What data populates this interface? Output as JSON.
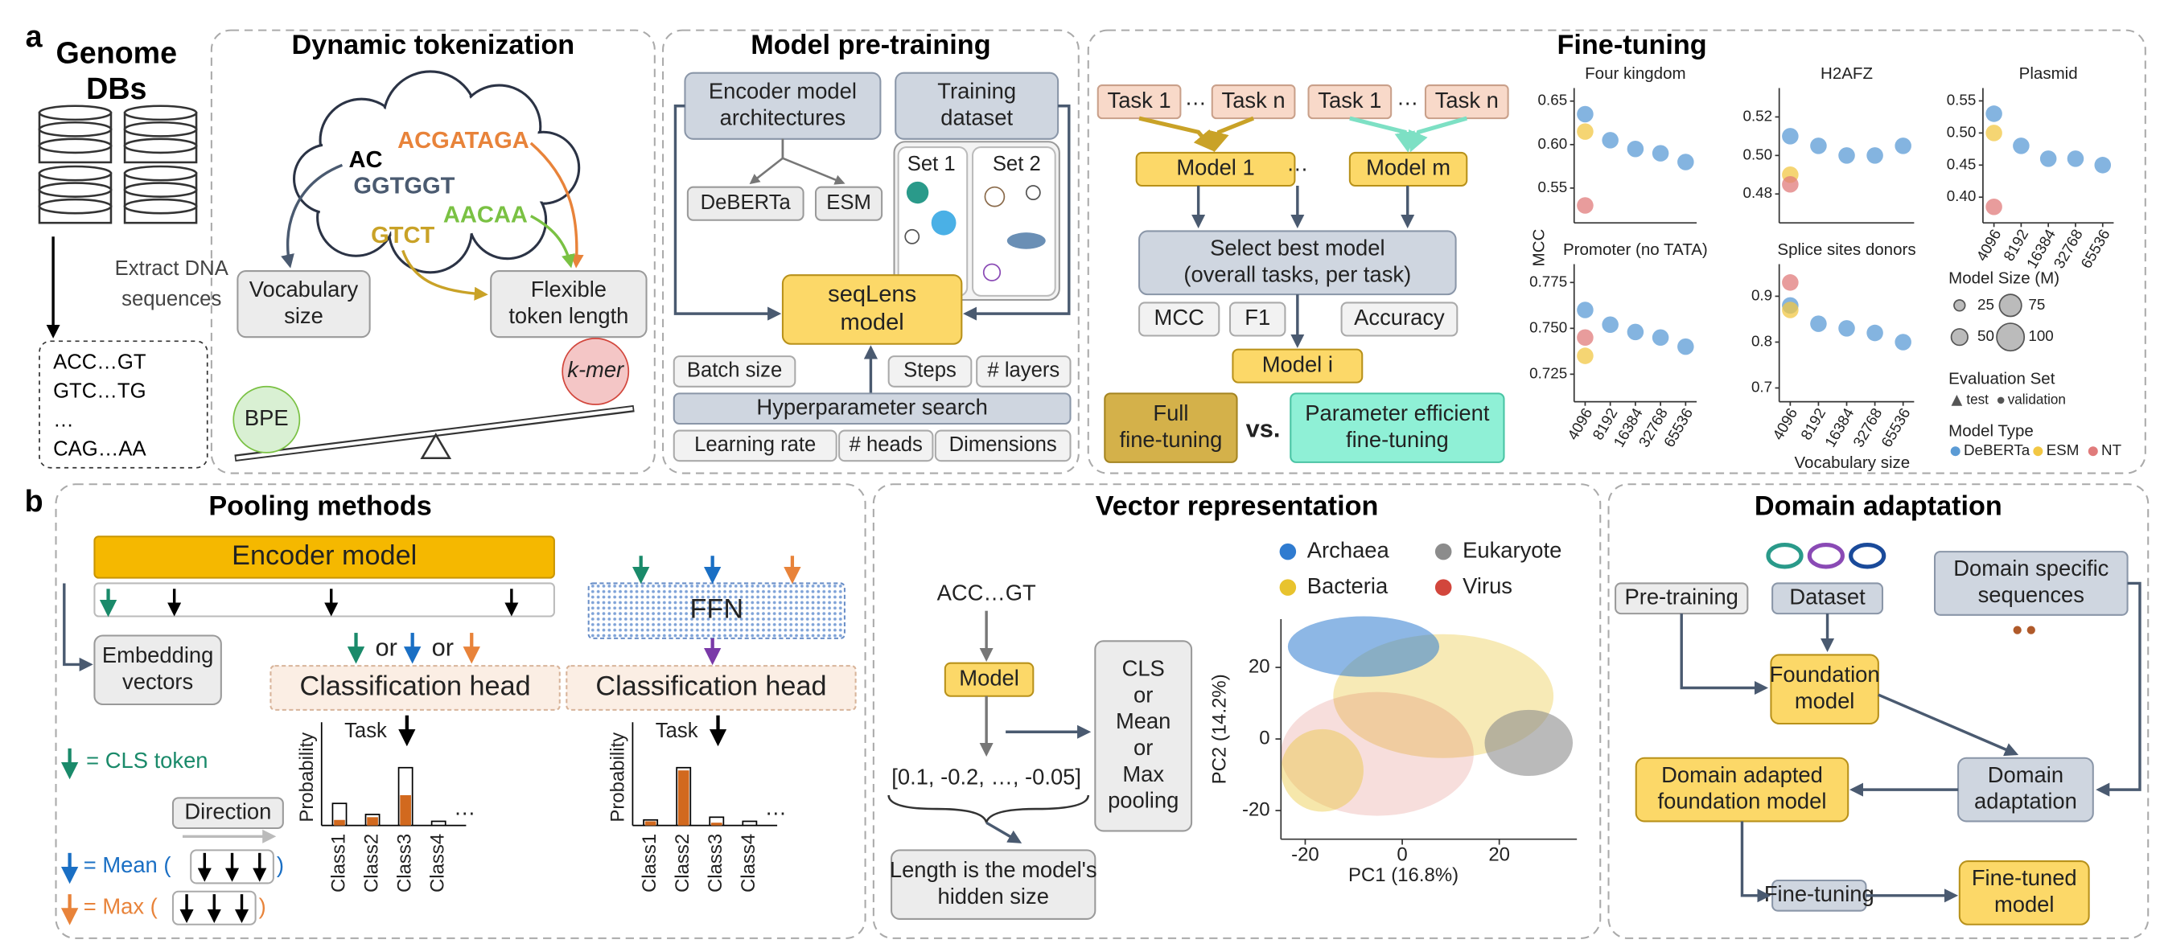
{
  "panel_labels": [
    "a",
    "b"
  ],
  "genome": {
    "title": [
      "Genome",
      "DBs"
    ],
    "extract": [
      "Extract DNA",
      "sequences"
    ],
    "sequences": [
      "ACC…GT",
      "GTC…TG",
      "…",
      "CAG…AA"
    ]
  },
  "tokenization": {
    "title": "Dynamic tokenization",
    "tokens": [
      "AC",
      "ACGATAGA",
      "GGTGGT",
      "AACAA",
      "GTCT"
    ],
    "vocabulary": [
      "Vocabulary",
      "size"
    ],
    "flexible": [
      "Flexible",
      "token length"
    ],
    "bpe": "BPE",
    "kmer": "k-mer"
  },
  "pretraining": {
    "title": "Model pre-training",
    "encoder": [
      "Encoder model",
      "architectures"
    ],
    "dataset": [
      "Training",
      "dataset"
    ],
    "architectures": [
      "DeBERTa",
      "ESM"
    ],
    "sets": [
      "Set 1",
      "Set 2"
    ],
    "model": [
      "seqLens",
      "model"
    ],
    "search": "Hyperparameter search",
    "hyperparameters": [
      "Batch size",
      "Steps",
      "# layers",
      "Learning rate",
      "# heads",
      "Dimensions"
    ]
  },
  "finetuning": {
    "title": "Fine-tuning",
    "tasks": [
      "Task 1",
      "…",
      "Task n",
      "Task 1",
      "…",
      "Task n"
    ],
    "models": [
      "Model 1",
      "…",
      "Model m"
    ],
    "select": [
      "Select best model",
      "(overall tasks, per task)"
    ],
    "metrics": [
      "MCC",
      "F1",
      "Accuracy"
    ],
    "best": "Model i",
    "full": [
      "Full",
      "fine-tuning"
    ],
    "versus": "vs.",
    "efficient": [
      "Parameter efficient",
      "fine-tuning"
    ]
  },
  "chart_data": {
    "type": "scatter",
    "y_label": "MCC",
    "x_label": "Vocabulary size",
    "categories": [
      "4096",
      "8192",
      "16384",
      "32768",
      "65536"
    ],
    "panels": [
      {
        "title": "Four kingdom",
        "ylim": [
          0.51,
          0.665
        ],
        "yticks": [
          0.65,
          {
            "value": 0.6,
            "label": "0.60"
          },
          0.55
        ],
        "series": [
          {
            "name": "DeBERTa",
            "color": "#5b9bd5",
            "values": [
              0.635,
              0.605,
              0.595,
              0.59,
              0.58
            ]
          },
          {
            "name": "ESM",
            "color": "#f2c744",
            "values": [
              0.615,
              null,
              null,
              null,
              null
            ]
          },
          {
            "name": "NT",
            "color": "#e07b7b",
            "values": [
              0.53,
              null,
              null,
              null,
              null
            ]
          }
        ]
      },
      {
        "title": "H2AFZ",
        "ylim": [
          0.465,
          0.535
        ],
        "yticks": [
          0.52,
          {
            "value": 0.5,
            "label": "0.50"
          },
          0.48
        ],
        "series": [
          {
            "name": "DeBERTa",
            "color": "#5b9bd5",
            "values": [
              0.51,
              0.505,
              0.5,
              0.5,
              0.505
            ]
          },
          {
            "name": "ESM",
            "color": "#f2c744",
            "values": [
              0.49,
              null,
              null,
              null,
              null
            ]
          },
          {
            "name": "NT",
            "color": "#e07b7b",
            "values": [
              0.485,
              null,
              null,
              null,
              null
            ]
          }
        ]
      },
      {
        "title": "Plasmid",
        "ylim": [
          0.36,
          0.57
        ],
        "yticks": [
          0.55,
          {
            "value": 0.5,
            "label": "0.50"
          },
          0.45,
          {
            "value": 0.4,
            "label": "0.40"
          }
        ],
        "series": [
          {
            "name": "DeBERTa",
            "color": "#5b9bd5",
            "values": [
              0.53,
              0.48,
              0.46,
              0.46,
              0.45
            ]
          },
          {
            "name": "ESM",
            "color": "#f2c744",
            "values": [
              0.5,
              null,
              null,
              null,
              null
            ]
          },
          {
            "name": "NT",
            "color": "#e07b7b",
            "values": [
              0.385,
              null,
              null,
              null,
              null
            ]
          }
        ]
      },
      {
        "title": "Promoter (no TATA)",
        "ylim": [
          0.71,
          0.785
        ],
        "yticks": [
          0.775,
          {
            "value": 0.75,
            "label": "0.750"
          },
          0.725
        ],
        "series": [
          {
            "name": "DeBERTa",
            "color": "#5b9bd5",
            "values": [
              0.76,
              0.752,
              0.748,
              0.745,
              0.74
            ]
          },
          {
            "name": "ESM",
            "color": "#f2c744",
            "values": [
              0.735,
              null,
              null,
              null,
              null
            ]
          },
          {
            "name": "NT",
            "color": "#e07b7b",
            "values": [
              0.745,
              null,
              null,
              null,
              null
            ]
          }
        ]
      },
      {
        "title": "Splice sites donors",
        "ylim": [
          0.67,
          0.97
        ],
        "yticks": [
          0.9,
          0.8,
          0.7
        ],
        "series": [
          {
            "name": "DeBERTa",
            "color": "#5b9bd5",
            "values": [
              0.88,
              0.84,
              0.83,
              0.82,
              0.8
            ]
          },
          {
            "name": "ESM",
            "color": "#f2c744",
            "values": [
              0.87,
              null,
              null,
              null,
              null
            ]
          },
          {
            "name": "NT",
            "color": "#e07b7b",
            "values": [
              0.93,
              null,
              null,
              null,
              null
            ]
          }
        ]
      }
    ],
    "legend": {
      "size_title": "Model Size (M)",
      "sizes": [
        25,
        75,
        50,
        100
      ],
      "eval_title": "Evaluation Set",
      "eval": [
        "test",
        "validation"
      ],
      "type_title": "Model Type"
    }
  },
  "pooling": {
    "title": "Pooling methods",
    "encoder": "Encoder model",
    "embedding": [
      "Embedding",
      "vectors"
    ],
    "or": [
      "or",
      "or"
    ],
    "heads": [
      "Classification head",
      "Classification head"
    ],
    "ffn": "FFN",
    "task": [
      "Task",
      "Task"
    ],
    "y_label": [
      "Probability",
      "Probability"
    ],
    "class_labels": [
      [
        "Class1",
        "Class2",
        "Class3",
        "Class4"
      ],
      [
        "Class1",
        "Class2",
        "Class3",
        "Class4"
      ]
    ],
    "ellipsis": [
      "…",
      "…"
    ],
    "cls": "= CLS token",
    "direction": "Direction",
    "mean": [
      "= Mean (",
      ")"
    ],
    "max": [
      "= Max (",
      ")"
    ]
  },
  "vector": {
    "title": "Vector representation",
    "input": "ACC…GT",
    "model": "Model",
    "vector": "[0.1, -0.2, …, -0.05]",
    "length": [
      "Length is the model's",
      "hidden size"
    ],
    "pooling": [
      "CLS",
      "or",
      "Mean",
      "or",
      "Max",
      "pooling"
    ],
    "scatter": {
      "x_label": "PC1 (16.8%)",
      "y_label": "PC2 (14.2%)",
      "xlim": [
        -25,
        36
      ],
      "ylim": [
        -28,
        33.5
      ],
      "xticks": [
        -20,
        0,
        20
      ],
      "yticks": [
        20,
        0,
        -20
      ],
      "legend": [
        {
          "name": "Archaea",
          "color": "#2f7bd0"
        },
        {
          "name": "Eukaryote",
          "color": "#8c8c8c"
        },
        {
          "name": "Bacteria",
          "color": "#e8c32e"
        },
        {
          "name": "Virus",
          "color": "#d2463c"
        }
      ]
    }
  },
  "domain": {
    "title": "Domain adaptation",
    "pretraining": "Pre-training",
    "dataset": "Dataset",
    "specific": [
      "Domain specific",
      "sequences"
    ],
    "foundation": [
      "Foundation",
      "model"
    ],
    "adaptation": [
      "Domain",
      "adaptation"
    ],
    "adapted": [
      "Domain adapted",
      "foundation model"
    ],
    "finetuning": "Fine-tuning",
    "finetuned": [
      "Fine-tuned",
      "model"
    ]
  }
}
